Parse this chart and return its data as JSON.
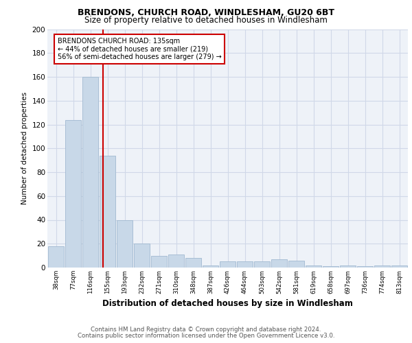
{
  "title1": "BRENDONS, CHURCH ROAD, WINDLESHAM, GU20 6BT",
  "title2": "Size of property relative to detached houses in Windlesham",
  "xlabel": "Distribution of detached houses by size in Windlesham",
  "ylabel": "Number of detached properties",
  "categories": [
    "38sqm",
    "77sqm",
    "116sqm",
    "155sqm",
    "193sqm",
    "232sqm",
    "271sqm",
    "310sqm",
    "348sqm",
    "387sqm",
    "426sqm",
    "464sqm",
    "503sqm",
    "542sqm",
    "581sqm",
    "619sqm",
    "658sqm",
    "697sqm",
    "736sqm",
    "774sqm",
    "813sqm"
  ],
  "values": [
    18,
    124,
    160,
    94,
    40,
    20,
    10,
    11,
    8,
    2,
    5,
    5,
    5,
    7,
    6,
    2,
    1,
    2,
    1,
    2,
    2
  ],
  "bar_color": "#c8d8e8",
  "bar_edge_color": "#a0b8d0",
  "vline_color": "#cc0000",
  "vline_x": 2.75,
  "annotation_text": "BRENDONS CHURCH ROAD: 135sqm\n← 44% of detached houses are smaller (219)\n56% of semi-detached houses are larger (279) →",
  "annotation_box_color": "white",
  "annotation_box_edge": "#cc0000",
  "ylim": [
    0,
    200
  ],
  "yticks": [
    0,
    20,
    40,
    60,
    80,
    100,
    120,
    140,
    160,
    180,
    200
  ],
  "grid_color": "#d0d8e8",
  "background_color": "#eef2f8",
  "footer1": "Contains HM Land Registry data © Crown copyright and database right 2024.",
  "footer2": "Contains public sector information licensed under the Open Government Licence v3.0."
}
